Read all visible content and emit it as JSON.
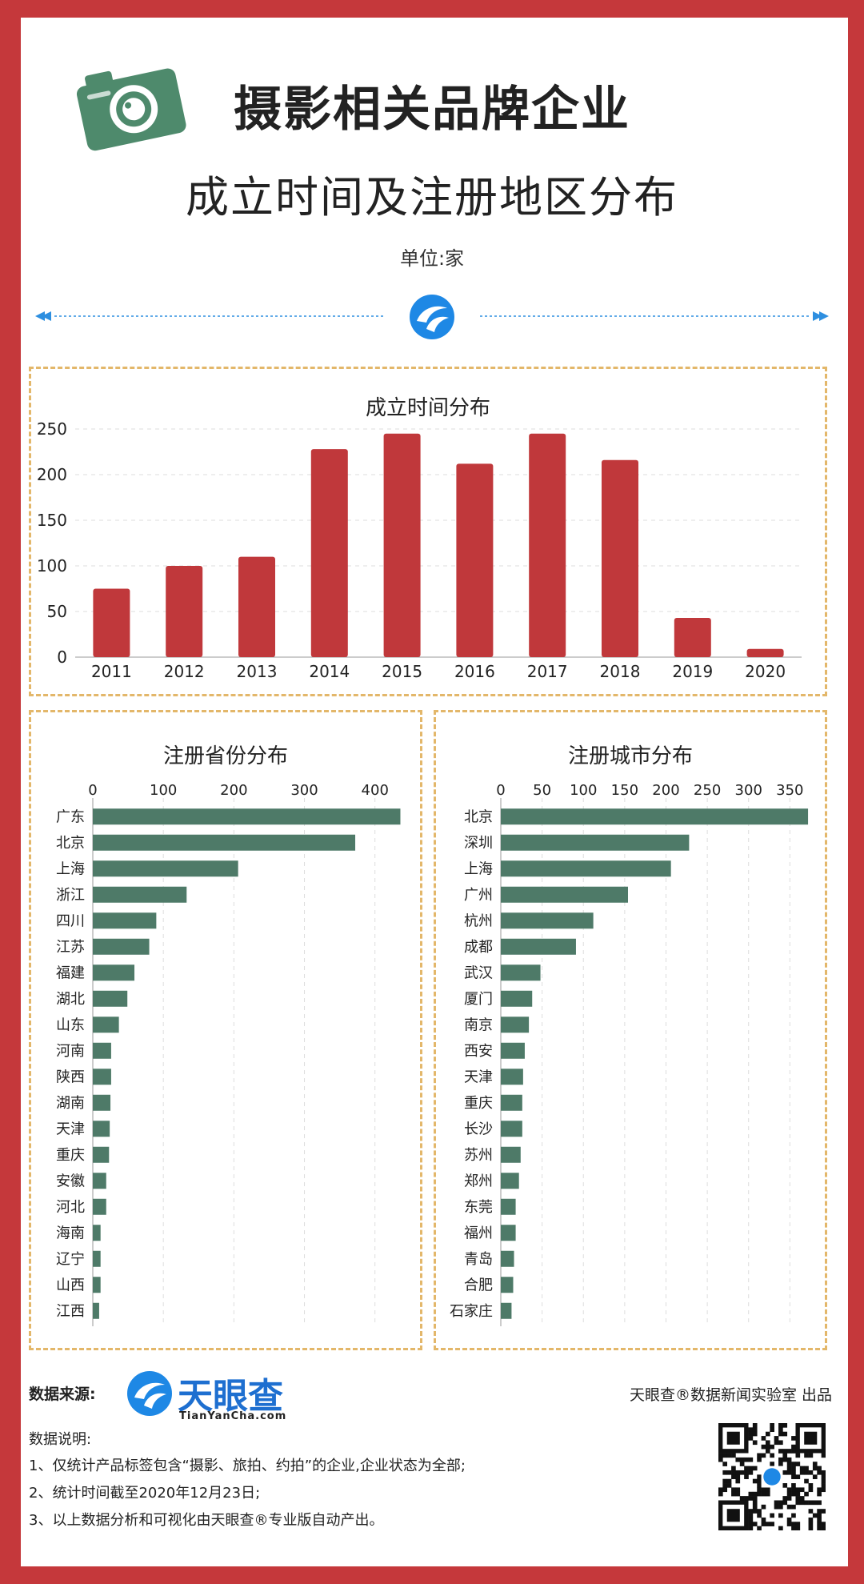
{
  "header": {
    "title": "摄影相关品牌企业",
    "subtitle": "成立时间及注册地区分布",
    "unit": "单位:家"
  },
  "colors": {
    "border": "#c5383b",
    "bar_red": "#c0383b",
    "bar_green": "#4e7a68",
    "dashed": "#e3b76a"
  },
  "icons": [
    "camera-icon",
    "tianyancha-logo-icon",
    "qr-code-icon"
  ],
  "chart_data": [
    {
      "type": "bar",
      "title": "成立时间分布",
      "categories": [
        "2011",
        "2012",
        "2013",
        "2014",
        "2015",
        "2016",
        "2017",
        "2018",
        "2019",
        "2020"
      ],
      "values": [
        75,
        100,
        110,
        228,
        245,
        212,
        245,
        216,
        43,
        9
      ],
      "ylim": [
        0,
        250
      ],
      "yticks": [
        "0",
        "50",
        "100",
        "150",
        "200",
        "250"
      ],
      "grid": true
    },
    {
      "type": "bar",
      "orientation": "horizontal",
      "title": "注册省份分布",
      "categories": [
        "广东",
        "北京",
        "上海",
        "浙江",
        "四川",
        "江苏",
        "福建",
        "湖北",
        "山东",
        "河南",
        "陕西",
        "湖南",
        "天津",
        "重庆",
        "安徽",
        "河北",
        "海南",
        "辽宁",
        "山西",
        "江西"
      ],
      "values": [
        436,
        372,
        206,
        133,
        90,
        80,
        59,
        49,
        37,
        26,
        26,
        25,
        24,
        23,
        19,
        19,
        11,
        11,
        11,
        9
      ],
      "xlim": [
        0,
        440
      ],
      "xticks": [
        "0",
        "100",
        "200",
        "300",
        "400"
      ],
      "grid": true
    },
    {
      "type": "bar",
      "orientation": "horizontal",
      "title": "注册城市分布",
      "categories": [
        "北京",
        "深圳",
        "上海",
        "广州",
        "杭州",
        "成都",
        "武汉",
        "厦门",
        "南京",
        "西安",
        "天津",
        "重庆",
        "长沙",
        "苏州",
        "郑州",
        "东莞",
        "福州",
        "青岛",
        "合肥",
        "石家庄"
      ],
      "values": [
        372,
        228,
        206,
        154,
        112,
        91,
        48,
        38,
        34,
        29,
        27,
        26,
        26,
        24,
        22,
        18,
        18,
        16,
        15,
        13
      ],
      "xlim": [
        0,
        370
      ],
      "xticks": [
        "0",
        "50",
        "100",
        "150",
        "200",
        "250",
        "300",
        "350"
      ],
      "grid": true
    }
  ],
  "footer": {
    "source_label": "数据来源:",
    "brand_name": "天眼查",
    "brand_url": "TianYanCha.com",
    "publisher": "天眼查®数据新闻实验室 出品",
    "notes_title": "数据说明:",
    "notes": [
      "1、仅统计产品标签包含“摄影、旅拍、约拍”的企业,企业状态为全部;",
      "2、统计时间截至2020年12月23日;",
      "3、以上数据分析和可视化由天眼查®专业版自动产出。"
    ]
  }
}
